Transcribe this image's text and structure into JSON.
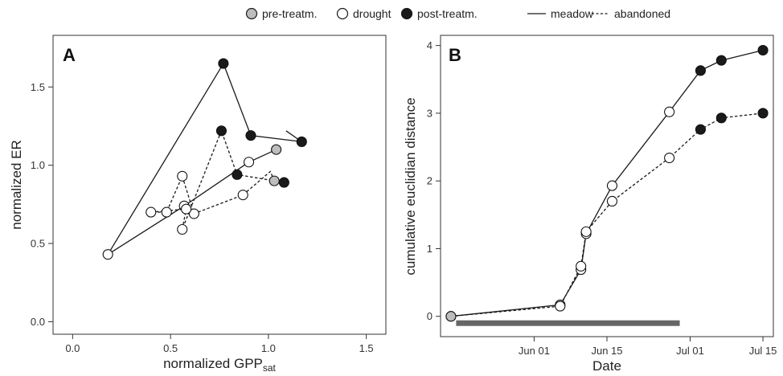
{
  "legend": {
    "pre_label": "pre-treatm.",
    "drought_label": "drought",
    "post_label": "post-treatm.",
    "meadow_label": "meadow",
    "abandoned_label": "abandoned"
  },
  "colors": {
    "pre": "#bdbdbd",
    "drought": "#ffffff",
    "post": "#1a1a1a",
    "line": "#1a1a1a",
    "drought_bar": "#666666"
  },
  "chart_data": [
    {
      "type": "scatter",
      "panel_label": "A",
      "xlabel": "normalized GPP",
      "xlabel_sub": "sat",
      "ylabel": "normalized ER",
      "xlim": [
        -0.1,
        1.6
      ],
      "ylim": [
        -0.08,
        1.83
      ],
      "xticks": [
        0.0,
        0.5,
        1.0,
        1.5
      ],
      "xtick_labels": [
        "0.0",
        "0.5",
        "1.0",
        "1.5"
      ],
      "yticks": [
        0.0,
        0.5,
        1.0,
        1.5
      ],
      "ytick_labels": [
        "0.0",
        "0.5",
        "1.0",
        "1.5"
      ],
      "grid": false,
      "series": [
        {
          "name": "meadow",
          "dash": "solid",
          "points": [
            {
              "x": 1.04,
              "y": 1.1,
              "phase": "pre"
            },
            {
              "x": 0.9,
              "y": 1.02,
              "phase": "drought"
            },
            {
              "x": 0.57,
              "y": 0.74,
              "phase": "drought"
            },
            {
              "x": 0.18,
              "y": 0.43,
              "phase": "drought"
            },
            {
              "x": 0.77,
              "y": 1.65,
              "phase": "post"
            },
            {
              "x": 0.91,
              "y": 1.19,
              "phase": "post"
            },
            {
              "x": 1.17,
              "y": 1.15,
              "phase": "post"
            },
            {
              "x": 1.09,
              "y": 1.22,
              "phase": "none"
            }
          ]
        },
        {
          "name": "abandoned",
          "dash": "dashed",
          "points": [
            {
              "x": 1.03,
              "y": 0.9,
              "phase": "pre"
            },
            {
              "x": 1.01,
              "y": 0.96,
              "phase": "none"
            },
            {
              "x": 0.87,
              "y": 0.81,
              "phase": "drought"
            },
            {
              "x": 0.62,
              "y": 0.69,
              "phase": "drought"
            },
            {
              "x": 0.56,
              "y": 0.93,
              "phase": "drought"
            },
            {
              "x": 0.48,
              "y": 0.7,
              "phase": "drought"
            },
            {
              "x": 0.4,
              "y": 0.7,
              "phase": "drought"
            },
            {
              "x": 0.58,
              "y": 0.72,
              "phase": "drought"
            },
            {
              "x": 0.56,
              "y": 0.59,
              "phase": "drought"
            },
            {
              "x": 0.76,
              "y": 1.22,
              "phase": "post"
            },
            {
              "x": 0.84,
              "y": 0.94,
              "phase": "post"
            },
            {
              "x": 1.08,
              "y": 0.89,
              "phase": "post"
            }
          ]
        }
      ]
    },
    {
      "type": "line",
      "panel_label": "B",
      "xlabel": "Date",
      "ylabel": "cumulative euclidian distance",
      "x_unit": "date",
      "xlim": [
        "2014-05-14",
        "2014-07-17"
      ],
      "ylim": [
        -0.3,
        4.15
      ],
      "xticks": [
        "2014-06-01",
        "2014-06-15",
        "2014-07-01",
        "2014-07-15"
      ],
      "xtick_labels": [
        "Jun 01",
        "Jun 15",
        "Jul 01",
        "Jul 15"
      ],
      "yticks": [
        0,
        1,
        2,
        3,
        4
      ],
      "ytick_labels": [
        "0",
        "1",
        "2",
        "3",
        "4"
      ],
      "grid": false,
      "drought_period": [
        "2014-05-17",
        "2014-06-29"
      ],
      "series": [
        {
          "name": "meadow",
          "dash": "solid",
          "points": [
            {
              "x": "2014-05-16",
              "y": 0.0,
              "phase": "pre"
            },
            {
              "x": "2014-06-06",
              "y": 0.17,
              "phase": "drought"
            },
            {
              "x": "2014-06-10",
              "y": 0.69,
              "phase": "drought"
            },
            {
              "x": "2014-06-11",
              "y": 1.22,
              "phase": "drought"
            },
            {
              "x": "2014-06-16",
              "y": 1.93,
              "phase": "drought"
            },
            {
              "x": "2014-06-27",
              "y": 3.02,
              "phase": "drought"
            },
            {
              "x": "2014-07-03",
              "y": 3.63,
              "phase": "post"
            },
            {
              "x": "2014-07-07",
              "y": 3.78,
              "phase": "post"
            },
            {
              "x": "2014-07-15",
              "y": 3.93,
              "phase": "post"
            }
          ]
        },
        {
          "name": "abandoned",
          "dash": "dashed",
          "points": [
            {
              "x": "2014-05-16",
              "y": 0.0,
              "phase": "pre"
            },
            {
              "x": "2014-06-06",
              "y": 0.15,
              "phase": "drought"
            },
            {
              "x": "2014-06-10",
              "y": 0.74,
              "phase": "drought"
            },
            {
              "x": "2014-06-11",
              "y": 1.25,
              "phase": "drought"
            },
            {
              "x": "2014-06-16",
              "y": 1.7,
              "phase": "drought"
            },
            {
              "x": "2014-06-27",
              "y": 2.34,
              "phase": "drought"
            },
            {
              "x": "2014-07-03",
              "y": 2.76,
              "phase": "post"
            },
            {
              "x": "2014-07-07",
              "y": 2.93,
              "phase": "post"
            },
            {
              "x": "2014-07-15",
              "y": 3.0,
              "phase": "post"
            }
          ]
        }
      ]
    }
  ]
}
